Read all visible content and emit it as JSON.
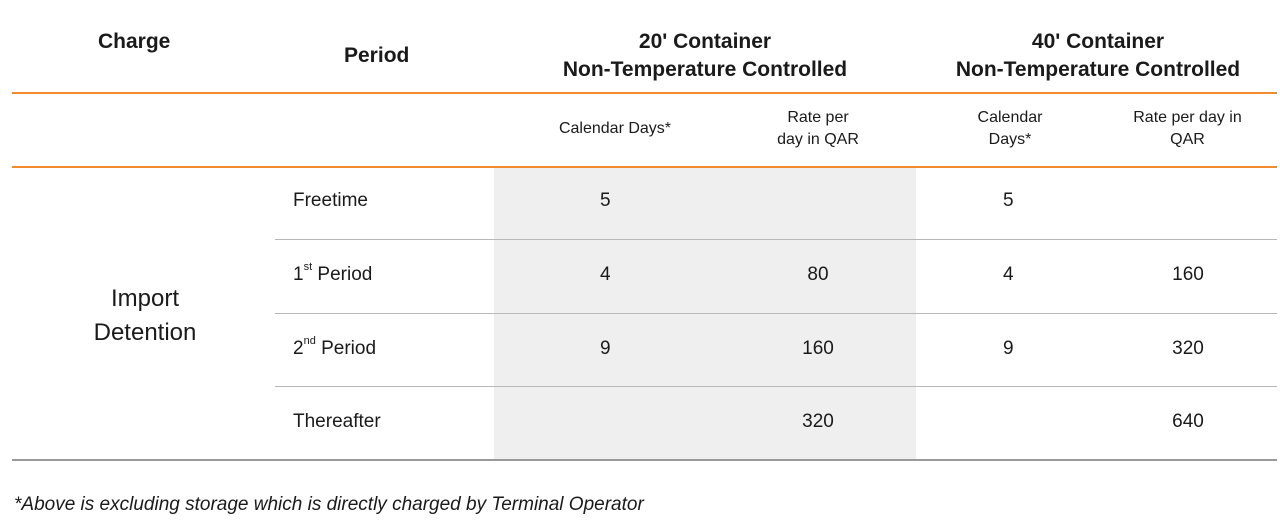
{
  "headers": {
    "charge": "Charge",
    "period": "Period",
    "container_20_line1": "20' Container",
    "container_20_line2": "Non-Temperature Controlled",
    "container_40_line1": "40' Container",
    "container_40_line2": "Non-Temperature Controlled"
  },
  "subheaders": {
    "c20_days": "Calendar Days*",
    "c20_rate_line1": "Rate per",
    "c20_rate_line2": "day in QAR",
    "c40_days_line1": "Calendar",
    "c40_days_line2": "Days*",
    "c40_rate_line1": "Rate per day in",
    "c40_rate_line2": "QAR"
  },
  "charge": {
    "line1": "Import",
    "line2": "Detention"
  },
  "rows": [
    {
      "period": "Freetime",
      "sup": "",
      "suffix": "",
      "c20_days": "5",
      "c20_rate": "",
      "c40_days": "5",
      "c40_rate": ""
    },
    {
      "period": "1",
      "sup": "st",
      "suffix": " Period",
      "c20_days": "4",
      "c20_rate": "80",
      "c40_days": "4",
      "c40_rate": "160"
    },
    {
      "period": "2",
      "sup": "nd",
      "suffix": " Period",
      "c20_days": "9",
      "c20_rate": "160",
      "c40_days": "9",
      "c40_rate": "320"
    },
    {
      "period": "Thereafter",
      "sup": "",
      "suffix": "",
      "c20_days": "",
      "c20_rate": "320",
      "c40_days": "",
      "c40_rate": "640"
    }
  ],
  "footnote": "*Above is excluding storage which is directly charged by Terminal Operator",
  "colors": {
    "accent": "#f28a2e",
    "shade": "#efefef",
    "rule": "#9a9a9a"
  }
}
